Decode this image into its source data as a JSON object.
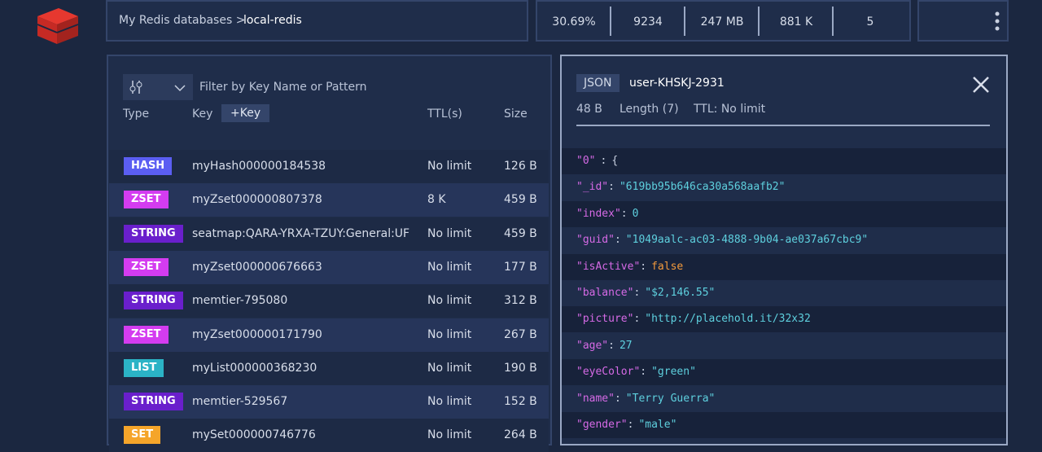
{
  "breadcrumb": {
    "parent": "My Redis databases >",
    "current": "local-redis"
  },
  "stats": [
    "30.69%",
    "9234",
    "247 MB",
    "881 K",
    "5"
  ],
  "filter_placeholder": "Filter by Key Name or Pattern",
  "table": {
    "headers": [
      "Type",
      "Key",
      "TTL(s)",
      "Size"
    ],
    "add_key": "+Key",
    "badge_colors": {
      "HASH": "#5b5ef2",
      "ZSET": "#d43cf0",
      "STRING": "#6a1fcc",
      "LIST": "#2bb3c6",
      "SET": "#f5a52a"
    },
    "rows": [
      [
        "HASH",
        "myHash000000184538",
        "No limit",
        "126 B"
      ],
      [
        "ZSET",
        "myZset000000807378",
        "8 K",
        "459 B"
      ],
      [
        "STRING",
        "seatmap:QARA-YRXA-TZUY:General:UF",
        "No limit",
        "459 B"
      ],
      [
        "ZSET",
        "myZset000000676663",
        "No limit",
        "177 B"
      ],
      [
        "STRING",
        "memtier-795080",
        "No limit",
        "312 B"
      ],
      [
        "ZSET",
        "myZset000000171790",
        "No limit",
        "267 B"
      ],
      [
        "LIST",
        "myList000000368230",
        "No limit",
        "190 B"
      ],
      [
        "STRING",
        "memtier-529567",
        "No limit",
        "152 B"
      ],
      [
        "SET",
        "mySet000000746776",
        "No limit",
        "264 B"
      ]
    ]
  },
  "detail": {
    "type": "JSON",
    "key": "user-KHSKJ-2931",
    "size": "48 B",
    "length": "Length (7)",
    "ttl": "TTL: No limit",
    "separator": ":",
    "lines": [
      {
        "key": "\"0\"",
        "value": "{"
      },
      {
        "key": "\"_id\"",
        "value": "\"619bb95b646ca30a568aafb2\""
      },
      {
        "key": "\"index\"",
        "value": "0"
      },
      {
        "key": "\"guid\"",
        "value": "\"1049aalc-ac03-4888-9b04-ae037a67cbc9\""
      },
      {
        "key": "\"isActive\"",
        "value": "false"
      },
      {
        "key": "\"balance\"",
        "value": "\"$2,146.55\""
      },
      {
        "key": "\"picture\"",
        "value": "\"http://placehold.it/32x32"
      },
      {
        "key": "\"age\"",
        "value": "27"
      },
      {
        "key": "\"eyeColor\"",
        "value": "\"green\""
      },
      {
        "key": "\"name\"",
        "value": "\"Terry Guerra\""
      },
      {
        "key": "\"gender\"",
        "value": "\"male\""
      }
    ]
  }
}
